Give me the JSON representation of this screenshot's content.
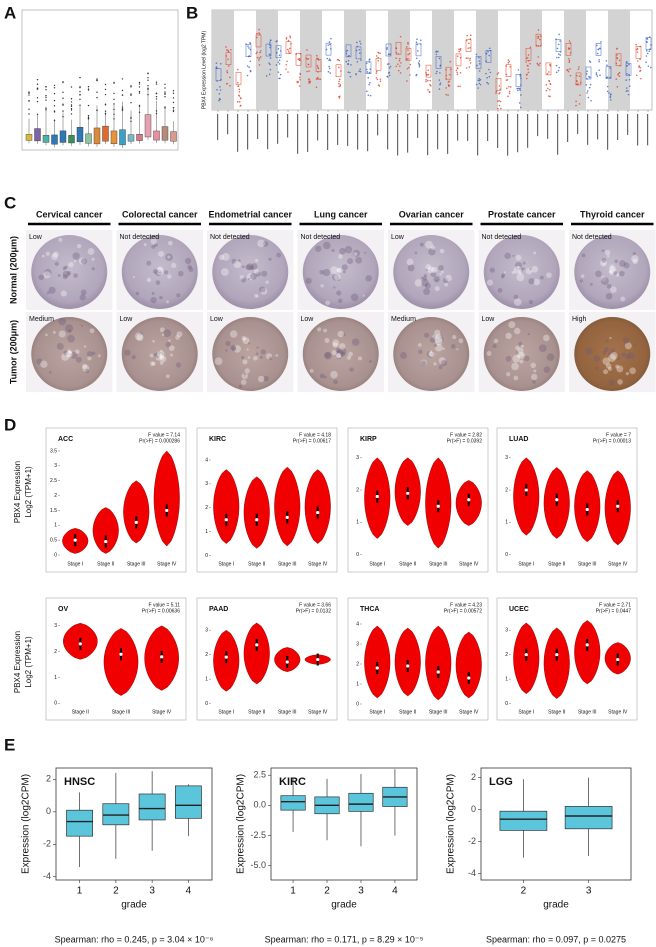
{
  "panel_labels": [
    "A",
    "B",
    "C",
    "D",
    "E"
  ],
  "panel_b": {
    "y_axis_label": "PBX4 Expression Level (log2 TPM)"
  },
  "panel_c": {
    "row_labels": [
      "Normal (200μm)",
      "Tumor (200μm)"
    ],
    "columns": [
      {
        "name": "Cervical cancer",
        "normal": "Low",
        "tumor": "Medium"
      },
      {
        "name": "Colorectal cancer",
        "normal": "Not detected",
        "tumor": "Low"
      },
      {
        "name": "Endometrial cancer",
        "normal": "Not detected",
        "tumor": "Low"
      },
      {
        "name": "Lung cancer",
        "normal": "Not detected",
        "tumor": "Low"
      },
      {
        "name": "Ovarian cancer",
        "normal": "Low",
        "tumor": "Medium"
      },
      {
        "name": "Prostate cancer",
        "normal": "Not detected",
        "tumor": "Low"
      },
      {
        "name": "Thyroid cancer",
        "normal": "Not detected",
        "tumor": "High"
      }
    ]
  },
  "panel_d": {
    "y_axis_label": [
      "PBX4 Expression",
      "Log2 (TPM+1)"
    ],
    "plots": [
      {
        "title": "ACC",
        "f_value": "F value = 7.14",
        "pr": "Pr(>F) = 0.000286",
        "stages": [
          "Stage I",
          "Stage II",
          "Stage III",
          "Stage IV"
        ],
        "ylim": [
          -0.1,
          3.6
        ],
        "yticks": [
          0,
          0.5,
          1,
          1.5,
          2,
          2.5,
          3,
          3.5
        ],
        "min": [
          0.05,
          0.05,
          0.4,
          0.3
        ],
        "median": [
          0.5,
          0.45,
          1.1,
          1.5
        ],
        "max": [
          0.9,
          1.6,
          2.5,
          3.5
        ]
      },
      {
        "title": "KIRC",
        "f_value": "F value = 4.18",
        "pr": "Pr(>F) = 0.00617",
        "stages": [
          "Stage I",
          "Stage II",
          "Stage III",
          "Stage IV"
        ],
        "ylim": [
          -0.1,
          4.5
        ],
        "yticks": [
          0,
          1,
          2,
          3,
          4
        ],
        "min": [
          0.5,
          0.3,
          0.4,
          0.5
        ],
        "median": [
          1.5,
          1.5,
          1.6,
          1.8
        ],
        "max": [
          3.6,
          3.3,
          3.7,
          3.6
        ]
      },
      {
        "title": "KIRP",
        "f_value": "F value = 2.82",
        "pr": "Pr(>F) = 0.0392",
        "stages": [
          "Stage I",
          "Stage II",
          "Stage III",
          "Stage IV"
        ],
        "ylim": [
          -0.1,
          3.3
        ],
        "yticks": [
          0,
          1,
          2,
          3
        ],
        "min": [
          0.5,
          0.9,
          0.2,
          0.9
        ],
        "median": [
          1.8,
          1.9,
          1.5,
          1.7
        ],
        "max": [
          3.0,
          3.0,
          3.0,
          2.3
        ]
      },
      {
        "title": "LUAD",
        "f_value": "F value = 7",
        "pr": "Pr(>F) = 0.00013",
        "stages": [
          "Stage I",
          "Stage II",
          "Stage III",
          "Stage IV"
        ],
        "ylim": [
          -0.1,
          3.3
        ],
        "yticks": [
          0,
          1,
          2,
          3
        ],
        "min": [
          0.6,
          0.5,
          0.4,
          0.3
        ],
        "median": [
          2.0,
          1.7,
          1.4,
          1.5
        ],
        "max": [
          3.0,
          2.7,
          2.6,
          2.6
        ]
      },
      {
        "title": "OV",
        "f_value": "F value = 5.11",
        "pr": "Pr(>F) = 0.00636",
        "stages": [
          "Stage II",
          "Stage III",
          "Stage IV"
        ],
        "ylim": [
          -0.1,
          3.3
        ],
        "yticks": [
          0,
          1,
          2,
          3
        ],
        "min": [
          1.7,
          0.3,
          0.5
        ],
        "median": [
          2.3,
          1.9,
          1.8
        ],
        "max": [
          3.1,
          2.9,
          3.0
        ]
      },
      {
        "title": "PAAD",
        "f_value": "F value = 3.66",
        "pr": "Pr(>F) = 0.0132",
        "stages": [
          "Stage I",
          "Stage II",
          "Stage III",
          "Stage IV"
        ],
        "ylim": [
          -0.1,
          3.5
        ],
        "yticks": [
          0,
          1,
          2,
          3
        ],
        "min": [
          0.5,
          0.8,
          1.3,
          1.6
        ],
        "median": [
          1.9,
          2.4,
          1.7,
          1.8
        ],
        "max": [
          3.0,
          3.3,
          2.3,
          2.0
        ]
      },
      {
        "title": "THCA",
        "f_value": "F value = 4.23",
        "pr": "Pr(>F) = 0.00572",
        "stages": [
          "Stage I",
          "Stage II",
          "Stage III",
          "Stage IV"
        ],
        "ylim": [
          -0.1,
          4.3
        ],
        "yticks": [
          0,
          1,
          2,
          3,
          4
        ],
        "min": [
          0.3,
          0.4,
          0.2,
          0.3
        ],
        "median": [
          1.8,
          1.9,
          1.6,
          1.3
        ],
        "max": [
          3.9,
          3.8,
          3.9,
          3.6
        ]
      },
      {
        "title": "UCEC",
        "f_value": "F value = 2.71",
        "pr": "Pr(>F) = 0.0447",
        "stages": [
          "Stage I",
          "Stage II",
          "Stage III",
          "Stage IV"
        ],
        "ylim": [
          -0.1,
          3.5
        ],
        "yticks": [
          0,
          1,
          2,
          3
        ],
        "min": [
          0.4,
          0.2,
          0.8,
          1.2
        ],
        "median": [
          2.0,
          2.0,
          2.4,
          1.8
        ],
        "max": [
          3.3,
          3.1,
          3.4,
          2.5
        ]
      }
    ]
  },
  "panel_e": {
    "y_axis_label": "Expression (log2CPM)",
    "x_axis_label": "grade",
    "plots": [
      {
        "title": "HNSC",
        "categories": [
          "1",
          "2",
          "3",
          "4"
        ],
        "ylim": [
          -4.2,
          2.7
        ],
        "yticks": [
          -4,
          -2,
          0,
          2
        ],
        "min": [
          -3.4,
          -2.9,
          -2.4,
          -1.5
        ],
        "q1": [
          -1.5,
          -0.8,
          -0.5,
          -0.4
        ],
        "median": [
          -0.6,
          -0.2,
          0.2,
          0.4
        ],
        "q3": [
          0.1,
          0.5,
          1.1,
          1.6
        ],
        "max": [
          1.2,
          2.4,
          2.5,
          1.7
        ],
        "note": "Spearman: rho = 0.245, p = 3.04 × 10⁻⁶"
      },
      {
        "title": "KIRC",
        "categories": [
          "1",
          "2",
          "3",
          "4"
        ],
        "ylim": [
          -6.2,
          3.1
        ],
        "yticks": [
          {
            "value": -5,
            "label": "-5.0"
          },
          {
            "value": -2.5,
            "label": "-2.5"
          },
          {
            "value": 0,
            "label": "0.0"
          },
          {
            "value": 2.5,
            "label": "2.5"
          }
        ],
        "min": [
          -2.2,
          -2.9,
          -3.4,
          -2.5
        ],
        "q1": [
          -0.4,
          -0.7,
          -0.5,
          -0.1
        ],
        "median": [
          0.3,
          0.0,
          0.1,
          0.7
        ],
        "q3": [
          0.8,
          0.7,
          1.0,
          1.5
        ],
        "max": [
          2.2,
          2.2,
          2.6,
          3.0
        ],
        "note": "Spearman: rho = 0.171, p = 8.29 × 10⁻⁵"
      },
      {
        "title": "LGG",
        "categories": [
          "2",
          "3"
        ],
        "ylim": [
          -4.4,
          2.6
        ],
        "yticks": [
          -4,
          -2,
          0,
          2
        ],
        "min": [
          -3.0,
          -2.9
        ],
        "q1": [
          -1.3,
          -1.2
        ],
        "median": [
          -0.6,
          -0.4
        ],
        "q3": [
          -0.1,
          0.2
        ],
        "max": [
          1.9,
          2.0
        ],
        "note": "Spearman: rho = 0.097, p = 0.0275"
      }
    ]
  }
}
